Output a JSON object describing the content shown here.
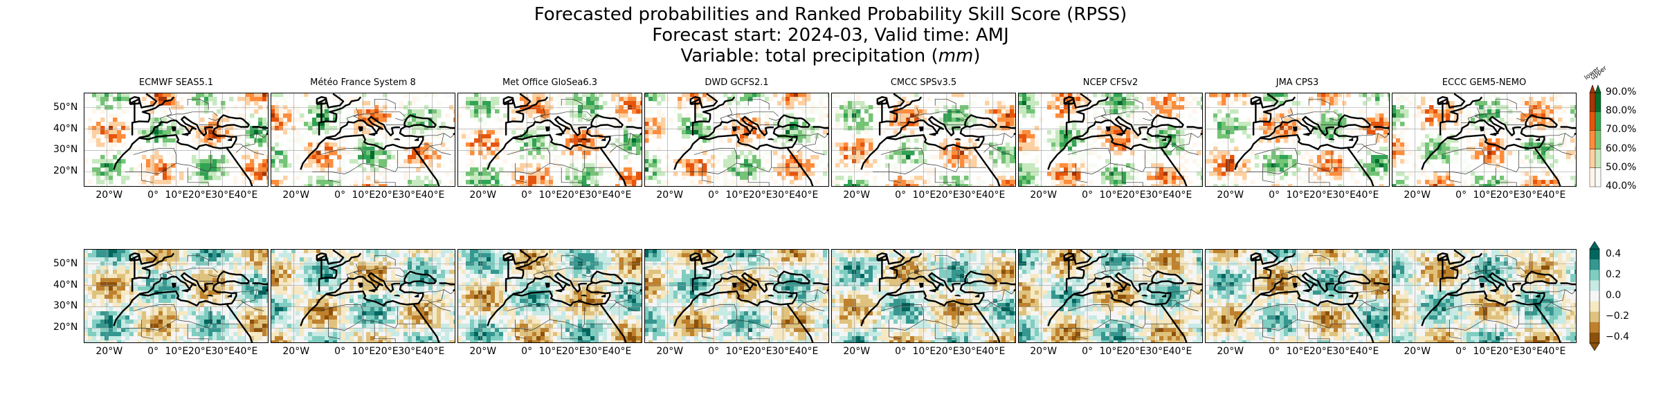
{
  "title": {
    "line1": "Forecasted probabilities and Ranked Probability Skill Score (RPSS)",
    "line2": "Forecast start: 2024-03, Valid time: AMJ",
    "line3_prefix": "Variable: total precipitation (",
    "line3_unit": "mm",
    "line3_suffix": ")"
  },
  "models": [
    "ECMWF SEAS5.1",
    "Météo France System 8",
    "Met Office GloSea6.3",
    "DWD GCFS2.1",
    "CMCC SPSv3.5",
    "NCEP CFSv2",
    "JMA CPS3",
    "ECCC GEM5-NEMO"
  ],
  "axes": {
    "lat_labels": [
      "50°N",
      "40°N",
      "30°N",
      "20°N"
    ],
    "lon_labels": [
      "20°W",
      "0°",
      "10°E",
      "20°E",
      "30°E",
      "40°E"
    ],
    "lat_values": [
      50,
      40,
      30,
      20
    ],
    "lon_values": [
      -20,
      0,
      10,
      20,
      30,
      40
    ],
    "lon_range": [
      -30,
      50
    ],
    "lat_range": [
      13,
      57
    ]
  },
  "colorbar_prob": {
    "ticks": [
      "90.0%",
      "80.0%",
      "70.0%",
      "60.0%",
      "50.0%",
      "40.0%"
    ],
    "values": [
      90,
      80,
      70,
      60,
      50,
      40
    ],
    "header_lower": "lower",
    "header_upper": "upper",
    "upper_colors": [
      "#f7fcf5",
      "#c7e9c0",
      "#74c476",
      "#31a354",
      "#006d2c"
    ],
    "lower_colors": [
      "#fff5eb",
      "#fdd0a2",
      "#fd8d3c",
      "#e6550d",
      "#a63603"
    ]
  },
  "colorbar_rpss": {
    "ticks": [
      "0.4",
      "0.2",
      "0.0",
      "−0.2",
      "−0.4"
    ],
    "values": [
      0.4,
      0.2,
      0.0,
      -0.2,
      -0.4
    ],
    "colors": [
      "#01665e",
      "#35978f",
      "#80cdc1",
      "#c7eae5",
      "#f5f5f5",
      "#f6e8c3",
      "#dfc27d",
      "#bf812d",
      "#8c510a"
    ]
  }
}
